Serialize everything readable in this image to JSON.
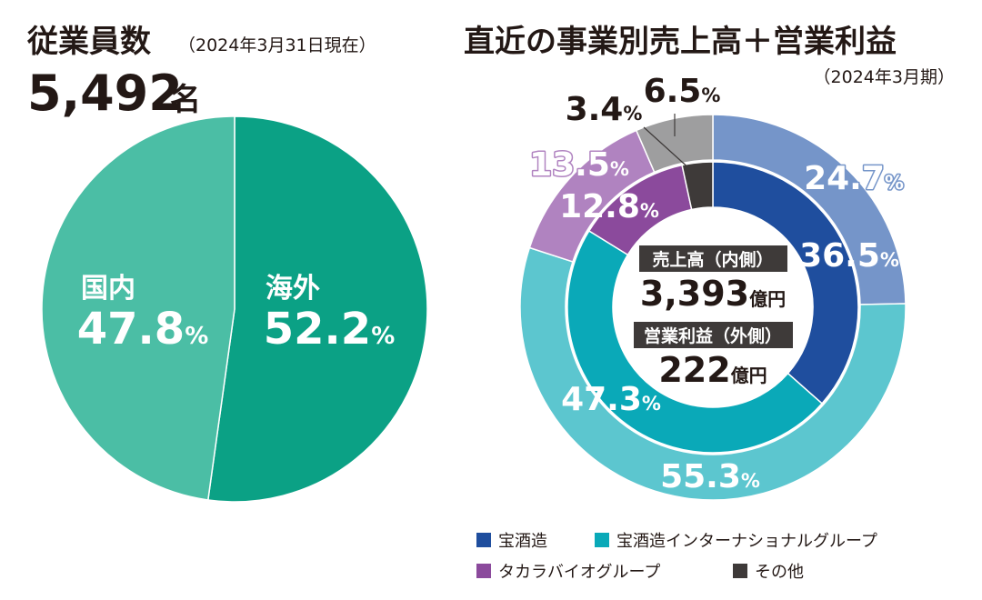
{
  "left": {
    "title": "従業員数",
    "subtitle": "（2024年3月31日現在）",
    "total_value": "5,492",
    "total_unit": "名"
  },
  "right": {
    "title": "直近の事業別売上高＋営業利益",
    "subtitle": "（2024年3月期）",
    "center": {
      "sales_label": "売上高（内側）",
      "sales_value": "3,393",
      "sales_unit": "億円",
      "profit_label": "営業利益（外側）",
      "profit_value": "222",
      "profit_unit": "億円"
    }
  },
  "legend": [
    {
      "name": "宝酒造",
      "color": "#1f4e9e"
    },
    {
      "name": "宝酒造インターナショナルグループ",
      "color": "#0aa9b8"
    },
    {
      "name": "タカラバイオグループ",
      "color": "#8b4a9c"
    },
    {
      "name": "その他",
      "color": "#3e3a39"
    }
  ],
  "colors": {
    "overseas": "#0ba185",
    "domestic": "#4bbea5",
    "takara_inner": "#1f4e9e",
    "takara_outer": "#7595c9",
    "intl_inner": "#0aa9b8",
    "intl_outer": "#5cc6cf",
    "bio_inner": "#8b4a9c",
    "bio_outer": "#b083c0",
    "other_inner": "#3e3a39",
    "other_outer": "#9e9e9f"
  },
  "chart_data": [
    {
      "type": "pie",
      "title": "従業員数",
      "series": [
        {
          "name": "海外",
          "value": 52.2,
          "label": "52.2",
          "unit": "%"
        },
        {
          "name": "国内",
          "value": 47.8,
          "label": "47.8",
          "unit": "%"
        }
      ]
    },
    {
      "type": "pie",
      "title": "直近の事業別売上高＋営業利益",
      "categories": [
        "宝酒造",
        "宝酒造インターナショナルグループ",
        "タカラバイオグループ",
        "その他"
      ],
      "series": [
        {
          "name": "売上高（内側）",
          "values": [
            36.5,
            47.3,
            12.8,
            3.4
          ],
          "labels": [
            "36.5",
            "47.3",
            "12.8",
            "3.4"
          ],
          "unit": "%"
        },
        {
          "name": "営業利益（外側）",
          "values": [
            24.7,
            55.3,
            13.5,
            6.5
          ],
          "labels": [
            "24.7",
            "55.3",
            "13.5",
            "6.5"
          ],
          "unit": "%"
        }
      ]
    }
  ]
}
